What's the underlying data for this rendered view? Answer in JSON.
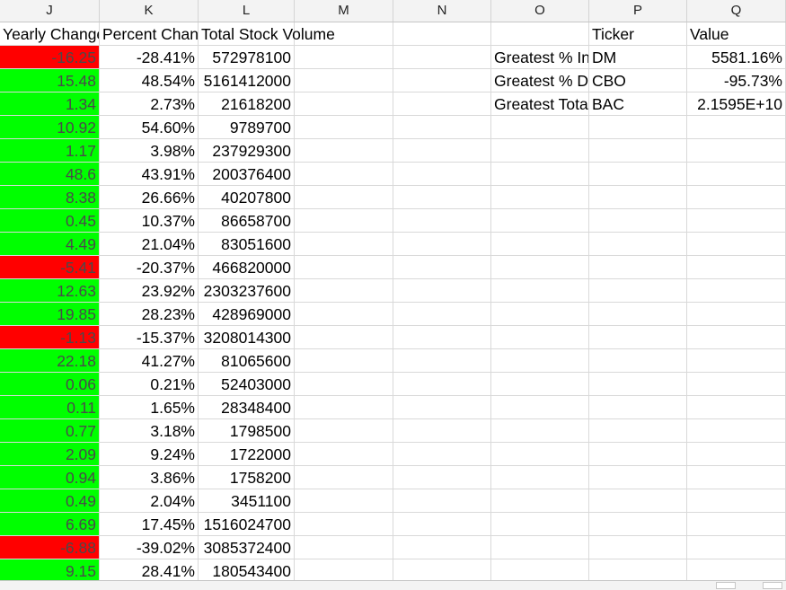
{
  "columns": [
    "J",
    "K",
    "L",
    "M",
    "N",
    "O",
    "P",
    "Q"
  ],
  "headers": {
    "yearly_change": "Yearly Change",
    "percent_change": "Percent Change",
    "total_stock_volume": "Total Stock Volume",
    "ticker": "Ticker",
    "value": "Value"
  },
  "rows": [
    {
      "yearly": "-16.25",
      "percent": "-28.41%",
      "volume": "572978100",
      "sign": "neg"
    },
    {
      "yearly": "15.48",
      "percent": "48.54%",
      "volume": "5161412000",
      "sign": "pos"
    },
    {
      "yearly": "1.34",
      "percent": "2.73%",
      "volume": "21618200",
      "sign": "pos"
    },
    {
      "yearly": "10.92",
      "percent": "54.60%",
      "volume": "9789700",
      "sign": "pos"
    },
    {
      "yearly": "1.17",
      "percent": "3.98%",
      "volume": "237929300",
      "sign": "pos"
    },
    {
      "yearly": "48.6",
      "percent": "43.91%",
      "volume": "200376400",
      "sign": "pos"
    },
    {
      "yearly": "8.38",
      "percent": "26.66%",
      "volume": "40207800",
      "sign": "pos"
    },
    {
      "yearly": "0.45",
      "percent": "10.37%",
      "volume": "86658700",
      "sign": "pos"
    },
    {
      "yearly": "4.49",
      "percent": "21.04%",
      "volume": "83051600",
      "sign": "pos"
    },
    {
      "yearly": "-5.41",
      "percent": "-20.37%",
      "volume": "466820000",
      "sign": "neg"
    },
    {
      "yearly": "12.63",
      "percent": "23.92%",
      "volume": "2303237600",
      "sign": "pos"
    },
    {
      "yearly": "19.85",
      "percent": "28.23%",
      "volume": "428969000",
      "sign": "pos"
    },
    {
      "yearly": "-1.13",
      "percent": "-15.37%",
      "volume": "3208014300",
      "sign": "neg"
    },
    {
      "yearly": "22.18",
      "percent": "41.27%",
      "volume": "81065600",
      "sign": "pos"
    },
    {
      "yearly": "0.06",
      "percent": "0.21%",
      "volume": "52403000",
      "sign": "pos"
    },
    {
      "yearly": "0.11",
      "percent": "1.65%",
      "volume": "28348400",
      "sign": "pos"
    },
    {
      "yearly": "0.77",
      "percent": "3.18%",
      "volume": "1798500",
      "sign": "pos"
    },
    {
      "yearly": "2.09",
      "percent": "9.24%",
      "volume": "1722000",
      "sign": "pos"
    },
    {
      "yearly": "0.94",
      "percent": "3.86%",
      "volume": "1758200",
      "sign": "pos"
    },
    {
      "yearly": "0.49",
      "percent": "2.04%",
      "volume": "3451100",
      "sign": "pos"
    },
    {
      "yearly": "6.69",
      "percent": "17.45%",
      "volume": "1516024700",
      "sign": "pos"
    },
    {
      "yearly": "-6.88",
      "percent": "-39.02%",
      "volume": "3085372400",
      "sign": "neg"
    },
    {
      "yearly": "9.15",
      "percent": "28.41%",
      "volume": "180543400",
      "sign": "pos"
    }
  ],
  "summary": [
    {
      "label": "Greatest % Increase",
      "ticker": "DM",
      "value": "5581.16%"
    },
    {
      "label": "Greatest % Decrease",
      "ticker": "CBO",
      "value": "-95.73%"
    },
    {
      "label": "Greatest Total Volume",
      "ticker": "BAC",
      "value": "2.1595E+10"
    }
  ],
  "colors": {
    "positive": "#00ff00",
    "negative": "#ff0000"
  }
}
